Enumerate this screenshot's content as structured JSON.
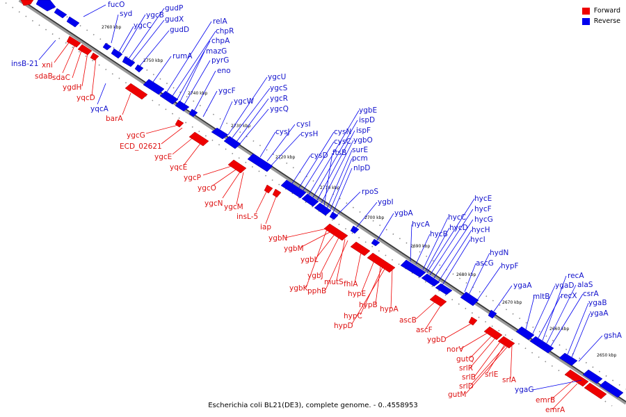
{
  "caption": "Escherichia coli BL21(DE3), complete genome. - 0..4558953",
  "legend": [
    {
      "label": "Forward",
      "color": "#ee0000"
    },
    {
      "label": "Reverse",
      "color": "#0000ee"
    }
  ],
  "colors": {
    "forward": "#ee0000",
    "reverse": "#0000ee",
    "forward_text": "#dd1111",
    "reverse_text": "#1111cc"
  },
  "kbp_ticks": [
    "2760 kbp",
    "2750 kbp",
    "2740 kbp",
    "2730 kbp",
    "2720 kbp",
    "2710 kbp",
    "2700 kbp",
    "2690 kbp",
    "2680 kbp",
    "2670 kbp",
    "2660 kbp",
    "2650 kbp"
  ],
  "reverse_genes": [
    "fucO",
    "syd",
    "ygcB",
    "ygcC",
    "gudP",
    "gudX",
    "gudD",
    "rumA",
    "relA",
    "chpR",
    "chpA",
    "mazG",
    "pyrG",
    "eno",
    "ygcF",
    "ygcW",
    "ygcU",
    "ygcS",
    "ygcR",
    "ygcQ",
    "cysJ",
    "cysI",
    "cysH",
    "cysD",
    "cysN",
    "cysC",
    "ygbE",
    "ispD",
    "ispF",
    "ygbO",
    "ftsB",
    "surE",
    "pcm",
    "nlpD",
    "rpoS",
    "ygbI",
    "ygbA",
    "hycA",
    "hycB",
    "hycC",
    "hycD",
    "hycE",
    "hycF",
    "hycG",
    "hycH",
    "hycI",
    "hydN",
    "ascG",
    "hypF",
    "ygaA",
    "mltB",
    "ygaD",
    "recX",
    "recA",
    "alaS",
    "csrA",
    "ygaB",
    "ygaA",
    "gshA",
    "insB-21",
    "yqcA",
    "ygaG"
  ],
  "forward_genes": [
    "xni",
    "sdaB",
    "sdaC",
    "ygdH",
    "yqcD",
    "barA",
    "ygcG",
    "ECD_02621",
    "ygcE",
    "yqcE",
    "ygcP",
    "ygcO",
    "ygcN",
    "ygcM",
    "insL-5",
    "iap",
    "ygbN",
    "ygbM",
    "ygbL",
    "ygbJ",
    "ygbK",
    "mutS",
    "pphB",
    "fhlA",
    "hypE",
    "hypB",
    "hypC",
    "hypD",
    "hypA",
    "ascB",
    "ascF",
    "ygbD",
    "norV",
    "gutQ",
    "srlR",
    "srlB",
    "srlE",
    "srlD",
    "srlA",
    "gutM",
    "emrB",
    "emrA"
  ]
}
